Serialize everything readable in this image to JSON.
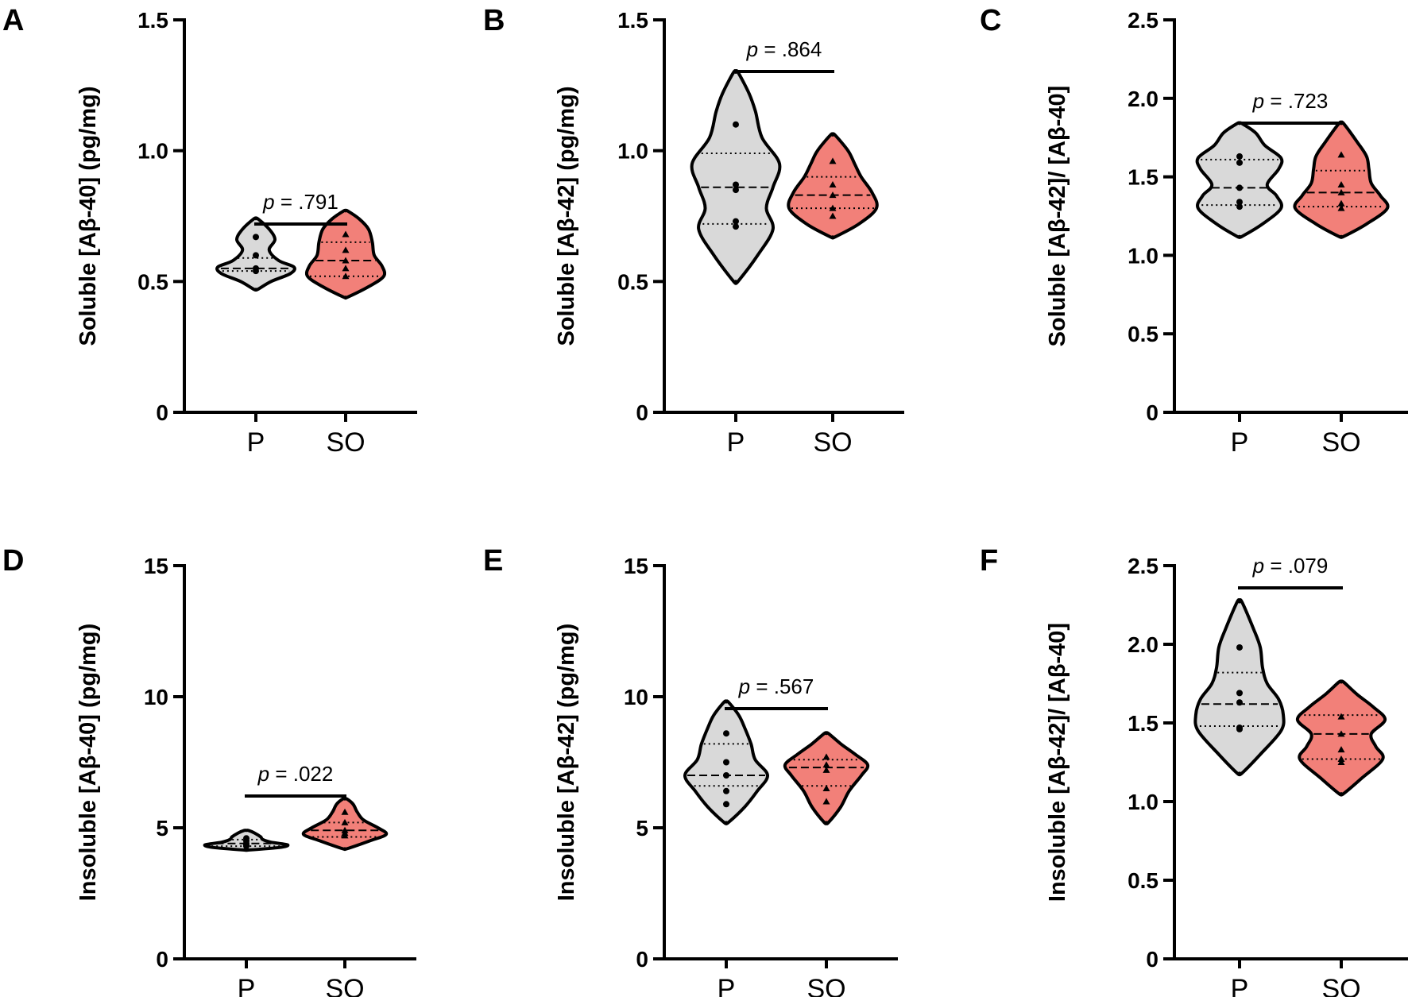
{
  "colors": {
    "P": "#d9d9d9",
    "SO": "#f28079",
    "ink": "#000000"
  },
  "chart_data": [
    {
      "panel": "A",
      "type": "violin",
      "ylabel": "Soluble [Aβ-40] (pg/mg)",
      "ylim": [
        0,
        1.5
      ],
      "yticks": [
        0,
        0.5,
        1.0,
        1.5
      ],
      "ytick_labels": [
        "0",
        "0.5",
        "1.0",
        "1.5"
      ],
      "categories": [
        "P",
        "SO"
      ],
      "groups": [
        {
          "name": "P",
          "min": 0.47,
          "max": 0.74,
          "q1": 0.54,
          "median": 0.55,
          "q3": 0.59,
          "points": [
            0.67,
            0.6,
            0.55,
            0.54
          ],
          "marker": "circle",
          "profile": [
            [
              0.47,
              0.05
            ],
            [
              0.5,
              0.4
            ],
            [
              0.53,
              0.9
            ],
            [
              0.555,
              1.0
            ],
            [
              0.58,
              0.6
            ],
            [
              0.62,
              0.35
            ],
            [
              0.66,
              0.5
            ],
            [
              0.7,
              0.35
            ],
            [
              0.74,
              0.05
            ]
          ]
        },
        {
          "name": "SO",
          "min": 0.44,
          "max": 0.77,
          "q1": 0.52,
          "median": 0.58,
          "q3": 0.65,
          "points": [
            0.68,
            0.62,
            0.58,
            0.55,
            0.52
          ],
          "marker": "triangle",
          "profile": [
            [
              0.44,
              0.05
            ],
            [
              0.48,
              0.6
            ],
            [
              0.52,
              1.0
            ],
            [
              0.56,
              0.95
            ],
            [
              0.6,
              0.75
            ],
            [
              0.65,
              0.7
            ],
            [
              0.7,
              0.6
            ],
            [
              0.74,
              0.35
            ],
            [
              0.77,
              0.05
            ]
          ]
        }
      ],
      "p_label": "p = .791"
    },
    {
      "panel": "B",
      "type": "violin",
      "ylabel": "Soluble [Aβ-42] (pg/mg)",
      "ylim": [
        0,
        1.5
      ],
      "yticks": [
        0,
        0.5,
        1.0,
        1.5
      ],
      "ytick_labels": [
        "0",
        "0.5",
        "1.0",
        "1.5"
      ],
      "categories": [
        "P",
        "SO"
      ],
      "groups": [
        {
          "name": "P",
          "min": 0.5,
          "max": 1.3,
          "q1": 0.72,
          "median": 0.86,
          "q3": 0.99,
          "points": [
            1.1,
            0.87,
            0.85,
            0.73,
            0.71
          ],
          "marker": "circle",
          "profile": [
            [
              0.5,
              0.05
            ],
            [
              0.6,
              0.5
            ],
            [
              0.7,
              0.85
            ],
            [
              0.78,
              0.7
            ],
            [
              0.86,
              0.85
            ],
            [
              0.95,
              1.0
            ],
            [
              1.05,
              0.6
            ],
            [
              1.15,
              0.45
            ],
            [
              1.22,
              0.3
            ],
            [
              1.3,
              0.05
            ]
          ]
        },
        {
          "name": "SO",
          "min": 0.67,
          "max": 1.06,
          "q1": 0.78,
          "median": 0.83,
          "q3": 0.9,
          "points": [
            0.96,
            0.87,
            0.83,
            0.78,
            0.75
          ],
          "marker": "triangle",
          "profile": [
            [
              0.67,
              0.05
            ],
            [
              0.72,
              0.6
            ],
            [
              0.78,
              1.0
            ],
            [
              0.84,
              0.9
            ],
            [
              0.9,
              0.65
            ],
            [
              0.95,
              0.5
            ],
            [
              1.0,
              0.35
            ],
            [
              1.06,
              0.05
            ]
          ]
        }
      ],
      "p_label": "p = .864"
    },
    {
      "panel": "C",
      "type": "violin",
      "ylabel": "Soluble [Aβ-42]/ [Aβ-40]",
      "ylim": [
        0,
        2.5
      ],
      "yticks": [
        0,
        0.5,
        1.0,
        1.5,
        2.0,
        2.5
      ],
      "ytick_labels": [
        "0",
        "0.5",
        "1.0",
        "1.5",
        "2.0",
        "2.5"
      ],
      "categories": [
        "P",
        "SO"
      ],
      "groups": [
        {
          "name": "P",
          "min": 1.12,
          "max": 1.84,
          "q1": 1.32,
          "median": 1.43,
          "q3": 1.61,
          "points": [
            1.63,
            1.59,
            1.43,
            1.34,
            1.31
          ],
          "marker": "circle",
          "profile": [
            [
              1.12,
              0.05
            ],
            [
              1.2,
              0.5
            ],
            [
              1.3,
              0.9
            ],
            [
              1.38,
              0.8
            ],
            [
              1.45,
              0.6
            ],
            [
              1.55,
              0.85
            ],
            [
              1.62,
              0.9
            ],
            [
              1.7,
              0.55
            ],
            [
              1.78,
              0.35
            ],
            [
              1.84,
              0.05
            ]
          ]
        },
        {
          "name": "SO",
          "min": 1.12,
          "max": 1.84,
          "q1": 1.31,
          "median": 1.4,
          "q3": 1.54,
          "points": [
            1.64,
            1.45,
            1.4,
            1.33,
            1.3
          ],
          "marker": "triangle",
          "profile": [
            [
              1.12,
              0.05
            ],
            [
              1.2,
              0.55
            ],
            [
              1.3,
              1.0
            ],
            [
              1.38,
              0.85
            ],
            [
              1.46,
              0.65
            ],
            [
              1.55,
              0.6
            ],
            [
              1.63,
              0.55
            ],
            [
              1.72,
              0.35
            ],
            [
              1.84,
              0.05
            ]
          ]
        }
      ],
      "p_label": "p = .723"
    },
    {
      "panel": "D",
      "type": "violin",
      "ylabel": "Insoluble [Aβ-40] (pg/mg)",
      "ylim": [
        0,
        15
      ],
      "yticks": [
        0,
        5,
        10,
        15
      ],
      "ytick_labels": [
        "0",
        "5",
        "10",
        "15"
      ],
      "categories": [
        "P",
        "SO"
      ],
      "groups": [
        {
          "name": "P",
          "min": 4.15,
          "max": 4.9,
          "q1": 4.3,
          "median": 4.4,
          "q3": 4.55,
          "points": [
            4.6,
            4.5,
            4.4,
            4.35,
            4.3
          ],
          "marker": "circle",
          "profile": [
            [
              4.15,
              0.05
            ],
            [
              4.25,
              0.8
            ],
            [
              4.35,
              1.0
            ],
            [
              4.45,
              0.6
            ],
            [
              4.55,
              0.4
            ],
            [
              4.65,
              0.35
            ],
            [
              4.8,
              0.2
            ],
            [
              4.9,
              0.05
            ]
          ]
        },
        {
          "name": "SO",
          "min": 4.2,
          "max": 6.1,
          "q1": 4.65,
          "median": 4.9,
          "q3": 5.2,
          "points": [
            5.6,
            5.2,
            4.9,
            4.8,
            4.7
          ],
          "marker": "triangle",
          "profile": [
            [
              4.2,
              0.05
            ],
            [
              4.5,
              0.6
            ],
            [
              4.75,
              1.0
            ],
            [
              5.0,
              0.8
            ],
            [
              5.3,
              0.45
            ],
            [
              5.6,
              0.3
            ],
            [
              5.9,
              0.2
            ],
            [
              6.1,
              0.05
            ]
          ]
        }
      ],
      "p_label": "p = .022"
    },
    {
      "panel": "E",
      "type": "violin",
      "ylabel": "Insoluble [Aβ-42] (pg/mg)",
      "ylim": [
        0,
        15
      ],
      "yticks": [
        0,
        5,
        10,
        15
      ],
      "ytick_labels": [
        "0",
        "5",
        "10",
        "15"
      ],
      "categories": [
        "P",
        "SO"
      ],
      "groups": [
        {
          "name": "P",
          "min": 5.2,
          "max": 9.8,
          "q1": 6.6,
          "median": 7.0,
          "q3": 8.2,
          "points": [
            8.6,
            7.5,
            7.0,
            6.4,
            5.9
          ],
          "marker": "circle",
          "profile": [
            [
              5.2,
              0.05
            ],
            [
              5.8,
              0.45
            ],
            [
              6.4,
              0.75
            ],
            [
              7.0,
              1.0
            ],
            [
              7.6,
              0.7
            ],
            [
              8.2,
              0.6
            ],
            [
              8.8,
              0.45
            ],
            [
              9.3,
              0.3
            ],
            [
              9.8,
              0.05
            ]
          ]
        },
        {
          "name": "SO",
          "min": 5.2,
          "max": 8.6,
          "q1": 6.6,
          "median": 7.3,
          "q3": 7.6,
          "points": [
            7.7,
            7.4,
            7.2,
            6.5,
            6.0
          ],
          "marker": "triangle",
          "profile": [
            [
              5.2,
              0.05
            ],
            [
              5.8,
              0.35
            ],
            [
              6.4,
              0.55
            ],
            [
              7.0,
              0.85
            ],
            [
              7.4,
              1.0
            ],
            [
              7.8,
              0.7
            ],
            [
              8.2,
              0.35
            ],
            [
              8.6,
              0.05
            ]
          ]
        }
      ],
      "p_label": "p = .567"
    },
    {
      "panel": "F",
      "type": "violin",
      "ylabel": "Insoluble [Aβ-42]/ [Aβ-40]",
      "ylim": [
        0,
        2.5
      ],
      "yticks": [
        0,
        0.5,
        1.0,
        1.5,
        2.0,
        2.5
      ],
      "ytick_labels": [
        "0",
        "0.5",
        "1.0",
        "1.5",
        "2.0",
        "2.5"
      ],
      "categories": [
        "P",
        "SO"
      ],
      "groups": [
        {
          "name": "P",
          "min": 1.18,
          "max": 2.27,
          "q1": 1.48,
          "median": 1.62,
          "q3": 1.82,
          "points": [
            1.98,
            1.69,
            1.63,
            1.47,
            1.46
          ],
          "marker": "circle",
          "profile": [
            [
              1.18,
              0.05
            ],
            [
              1.3,
              0.45
            ],
            [
              1.45,
              0.9
            ],
            [
              1.55,
              0.95
            ],
            [
              1.65,
              0.85
            ],
            [
              1.75,
              0.6
            ],
            [
              1.85,
              0.5
            ],
            [
              1.98,
              0.45
            ],
            [
              2.1,
              0.3
            ],
            [
              2.27,
              0.05
            ]
          ]
        },
        {
          "name": "SO",
          "min": 1.05,
          "max": 1.76,
          "q1": 1.27,
          "median": 1.43,
          "q3": 1.55,
          "points": [
            1.54,
            1.43,
            1.33,
            1.27,
            1.25
          ],
          "marker": "triangle",
          "profile": [
            [
              1.05,
              0.05
            ],
            [
              1.15,
              0.45
            ],
            [
              1.27,
              0.9
            ],
            [
              1.35,
              0.75
            ],
            [
              1.43,
              0.65
            ],
            [
              1.52,
              0.95
            ],
            [
              1.6,
              0.7
            ],
            [
              1.68,
              0.35
            ],
            [
              1.76,
              0.05
            ]
          ]
        }
      ],
      "p_label": "p = .079"
    }
  ]
}
